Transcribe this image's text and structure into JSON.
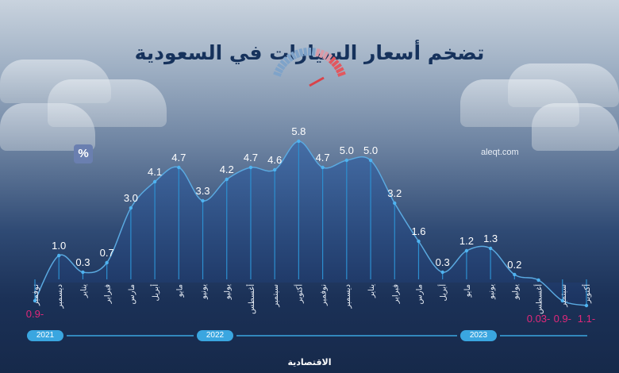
{
  "title": "تضخم أسعار السيارات في السعودية",
  "source": "aleqt.com",
  "unit": "%",
  "footer_logo": "الاقتصادية",
  "years": [
    "2021",
    "2022",
    "2023"
  ],
  "colors": {
    "line": "#2d8fd0",
    "positive_label": "#ffffff",
    "negative_label": "#e0287a",
    "marker": "#4fb3f0"
  },
  "chart_data": {
    "type": "area",
    "title": "تضخم أسعار السيارات في السعودية",
    "unit": "%",
    "categories": [
      "نوفمبر",
      "ديسمبر",
      "يناير",
      "فبراير",
      "مارس",
      "أبريل",
      "مايو",
      "يونيو",
      "يوليو",
      "أغسطس",
      "سبتمبر",
      "أكتوبر",
      "نوفمبر",
      "ديسمبر",
      "يناير",
      "فبراير",
      "مارس",
      "أبريل",
      "مايو",
      "يونيو",
      "يوليو",
      "أغسطس",
      "سبتمبر",
      "أكتوبر"
    ],
    "values": [
      -0.9,
      1.0,
      0.3,
      0.7,
      3.0,
      4.1,
      4.7,
      3.3,
      4.2,
      4.7,
      4.6,
      5.8,
      4.7,
      5.0,
      5.0,
      3.2,
      1.6,
      0.3,
      1.2,
      1.3,
      0.2,
      -0.03,
      -0.9,
      -1.1
    ],
    "labels": [
      "0.9-",
      "1.0",
      "0.3",
      "0.7",
      "3.0",
      "4.1",
      "4.7",
      "3.3",
      "4.2",
      "4.7",
      "4.6",
      "5.8",
      "4.7",
      "5.0",
      "5.0",
      "3.2",
      "1.6",
      "0.3",
      "1.2",
      "1.3",
      "0.2",
      "0.03-",
      "0.9-",
      "1.1-"
    ],
    "year_groups": [
      {
        "year": "2021",
        "from": 0,
        "to": 1
      },
      {
        "year": "2022",
        "from": 2,
        "to": 13
      },
      {
        "year": "2023",
        "from": 14,
        "to": 23
      }
    ]
  }
}
